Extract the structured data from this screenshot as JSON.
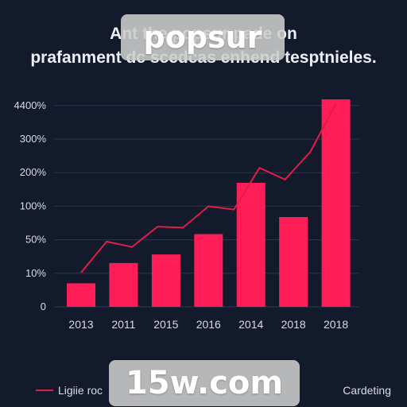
{
  "header": {
    "title_line1": "Ant the popsur pade on",
    "title_line2": "prafanment dc scedcas enhend tesptnieles."
  },
  "watermarks": {
    "top": "popsur",
    "bottom": "15w.com"
  },
  "legend": {
    "left_label": "Ligiie roc",
    "right_label": "Cardeting"
  },
  "colors": {
    "bar": "#ff1d57",
    "trend": "#e11d48",
    "background": "#131a2c"
  },
  "chart_data": {
    "type": "bar",
    "title": "Ant the popsur pade on prafanment dc scedcas enhend tesptnieles.",
    "categories": [
      "2013",
      "2011",
      "2015",
      "2016",
      "2014",
      "2018",
      "2018"
    ],
    "values": [
      1.1,
      2.05,
      2.45,
      3.4,
      5.8,
      4.2,
      9.7
    ],
    "trend_values": [
      1.6,
      3.05,
      2.8,
      3.75,
      3.7,
      4.7,
      4.55,
      6.5,
      5.95,
      7.25,
      9.5
    ],
    "yticks": [
      "0",
      "10%",
      "50%",
      "100%",
      "200%",
      "300%",
      "4400%"
    ],
    "ylim": [
      0,
      11
    ],
    "grid": true,
    "legend_position": "bottom",
    "xlabel": "",
    "ylabel": ""
  }
}
